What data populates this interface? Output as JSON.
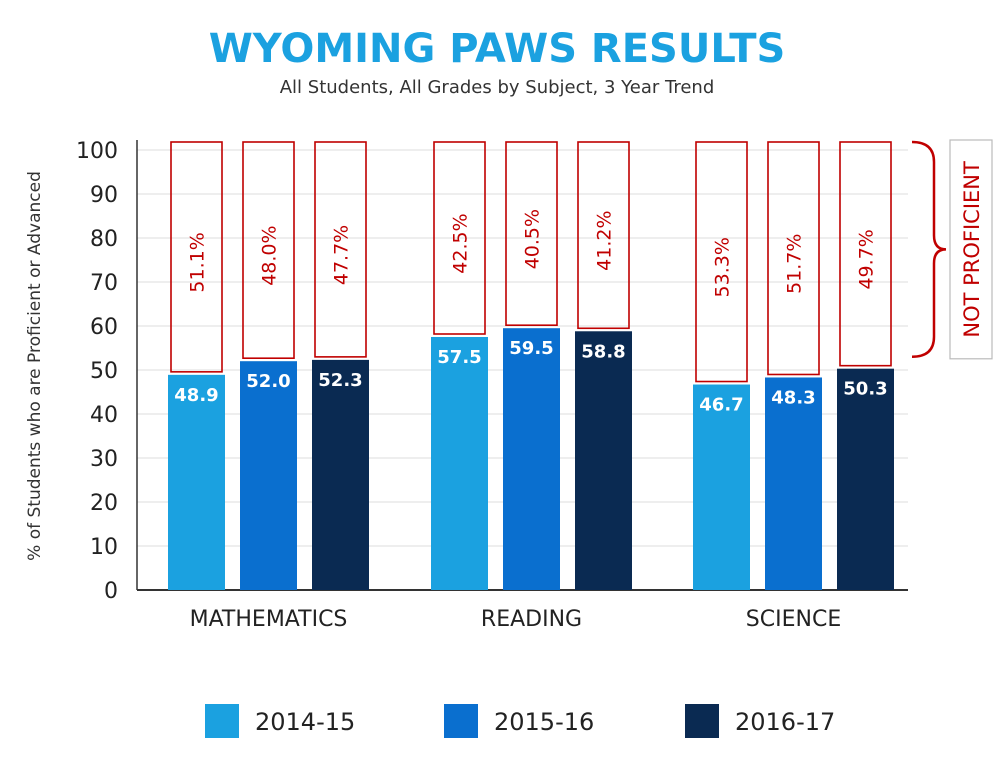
{
  "chart_data": {
    "type": "bar",
    "title": "WYOMING PAWS RESULTS",
    "subtitle": "All Students, All Grades by Subject, 3 Year Trend",
    "ylabel": "% of Students who are Proficient or Advanced",
    "xlabel": "",
    "ylim": [
      0,
      100
    ],
    "yticks": [
      "0",
      "10",
      "20",
      "30",
      "40",
      "50",
      "60",
      "70",
      "80",
      "90",
      "100"
    ],
    "grid": true,
    "legend_position": "bottom",
    "categories": [
      "MATHEMATICS",
      "READING",
      "SCIENCE"
    ],
    "series": [
      {
        "name": "2014-15",
        "color": "#1ba1e0",
        "values": [
          48.9,
          57.5,
          46.7
        ],
        "labels": [
          "48.9",
          "57.5",
          "46.7"
        ],
        "not_proficient": [
          "51.1%",
          "42.5%",
          "53.3%"
        ]
      },
      {
        "name": "2015-16",
        "color": "#0a6fcf",
        "values": [
          52.0,
          59.5,
          48.3
        ],
        "labels": [
          "52.0",
          "59.5",
          "48.3"
        ],
        "not_proficient": [
          "48.0%",
          "40.5%",
          "51.7%"
        ]
      },
      {
        "name": "2016-17",
        "color": "#0a2a52",
        "values": [
          52.3,
          58.8,
          50.3
        ],
        "labels": [
          "52.3",
          "58.8",
          "50.3"
        ],
        "not_proficient": [
          "47.7%",
          "41.2%",
          "49.7%"
        ]
      }
    ],
    "annotation": {
      "label": "NOT PROFICIENT",
      "color": "#c00000"
    }
  }
}
